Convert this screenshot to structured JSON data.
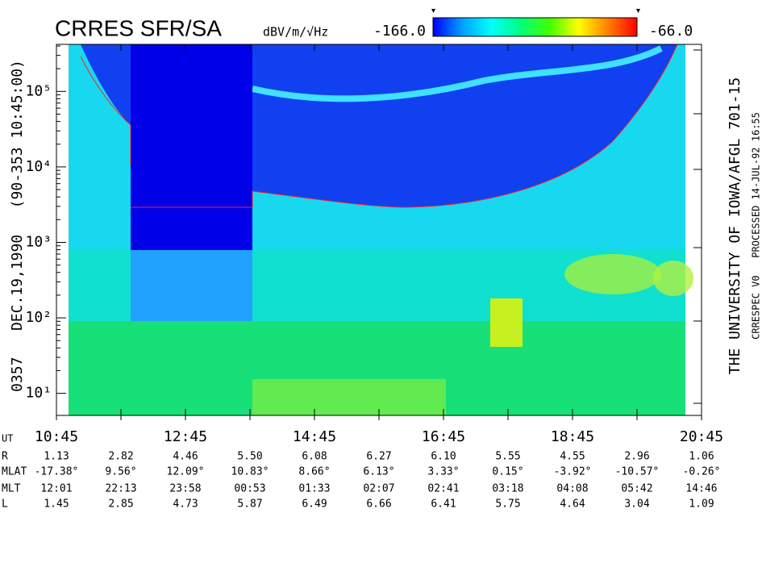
{
  "chart_data": {
    "type": "spectrogram",
    "title": "CRRES SFR/SA",
    "unit_label": "dBV/m/√Hz",
    "colorbar": {
      "range": [
        {
          "value": -166,
          "label": "-166.0"
        },
        {
          "value": -66,
          "label": "-66.0"
        }
      ],
      "colors": [
        "#0000ff",
        "#00a0ff",
        "#00ffff",
        "#00ff80",
        "#40ff00",
        "#ffff00",
        "#ff8000",
        "#ff0000"
      ]
    },
    "left_label": "0357   DEC.19,1990   (90-353 10:45:00)",
    "right_label": "THE UNIVERSITY OF IOWA/AFGL 701-15",
    "right_sublabel": "CRRESPEC V0   PROCESSED 14-JUL-92 16:55",
    "categories": [
      "10:45",
      "12:45",
      "14:45",
      "16:45",
      "18:45",
      "20:45"
    ],
    "log_scale": true,
    "ylim": [
      5.1,
      420000
    ],
    "yticks": [
      {
        "value": 10,
        "label": "10¹"
      },
      {
        "value": 100,
        "label": "10²"
      },
      {
        "value": 1000,
        "label": "10³"
      },
      {
        "value": 10000,
        "label": "10⁴"
      },
      {
        "value": 100000,
        "label": "10⁵"
      }
    ],
    "ephemeris": {
      "row_labels": [
        "UT",
        "R",
        "MLAT",
        "MLT",
        "L"
      ],
      "rows": [
        [
          "1.13",
          "2.82",
          "4.46",
          "5.50",
          "6.08",
          "6.27",
          "6.10",
          "5.55",
          "4.55",
          "2.96",
          "1.06"
        ],
        [
          "-17.38°",
          "9.56°",
          "12.09°",
          "10.83°",
          "8.66°",
          "6.13°",
          "3.33°",
          "0.15°",
          "-3.92°",
          "-10.57°",
          "-0.26°"
        ],
        [
          "12:01",
          "22:13",
          "23:58",
          "00:53",
          "01:33",
          "02:07",
          "02:41",
          "03:18",
          "04:08",
          "05:42",
          "14:46"
        ],
        [
          "1.45",
          "2.85",
          "4.73",
          "5.87",
          "6.49",
          "6.66",
          "6.41",
          "5.75",
          "4.64",
          "3.04",
          "1.09"
        ]
      ]
    }
  }
}
